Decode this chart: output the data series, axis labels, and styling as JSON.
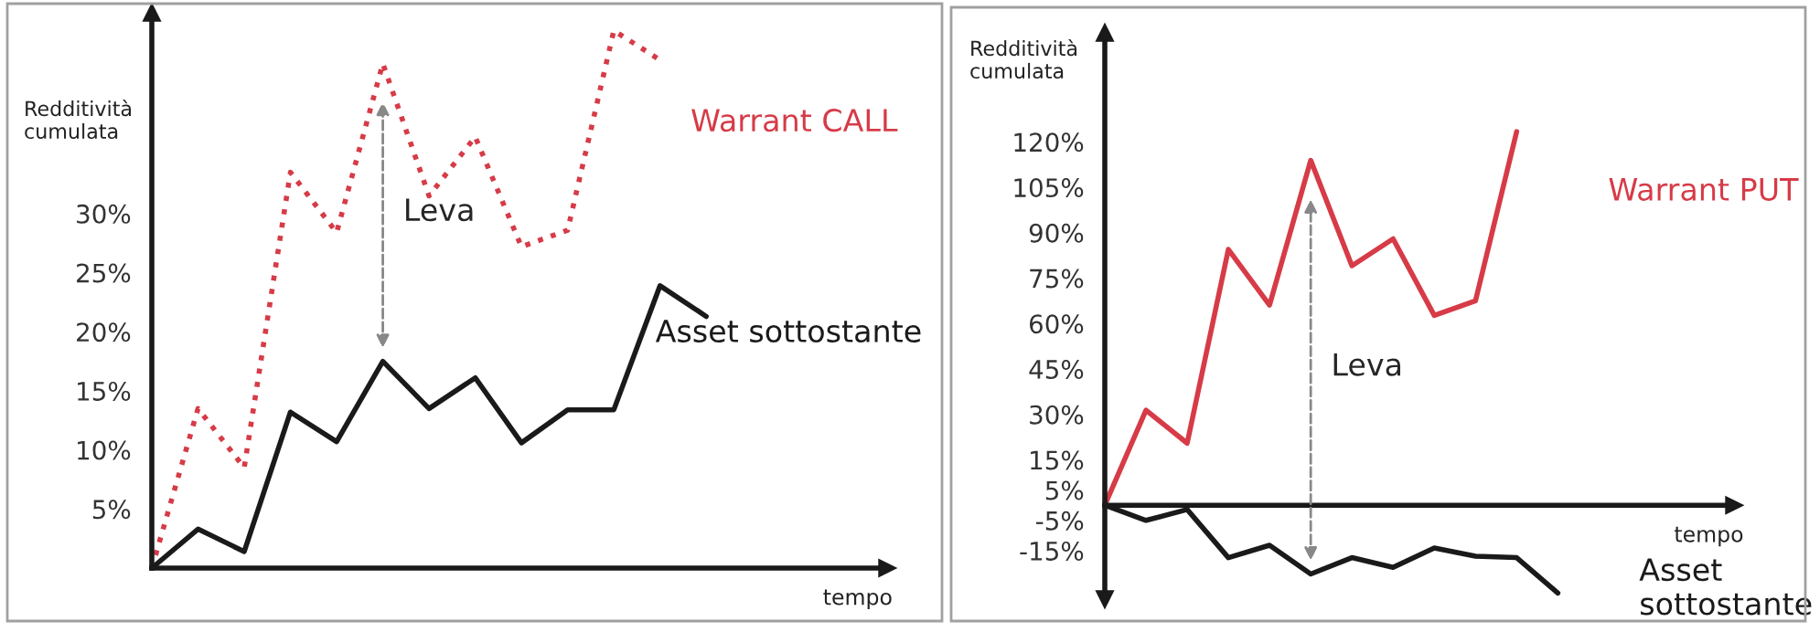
{
  "chart_data": [
    {
      "type": "line",
      "ylabel": "Redditività\ncumulata",
      "xlabel": "tempo",
      "categories": [
        null,
        null,
        null,
        null,
        null,
        null,
        null,
        null,
        null,
        null,
        null,
        null,
        null
      ],
      "ylim": [
        0,
        47
      ],
      "yticks": [
        {
          "value": 5,
          "label": "5%"
        },
        {
          "value": 10,
          "label": "10%"
        },
        {
          "value": 15,
          "label": "15%"
        },
        {
          "value": 20,
          "label": "20%"
        },
        {
          "value": 25,
          "label": "25%"
        },
        {
          "value": 30,
          "label": "30%"
        }
      ],
      "tick_labels": "y",
      "grid": false,
      "legend": false,
      "series": [
        {
          "name": "Warrant CALL",
          "color": "#d63b47",
          "line_style": "dotted",
          "values": [
            0,
            13.5,
            8.5,
            33.5,
            28.4,
            42.7,
            31.5,
            36.5,
            27.2,
            28.6,
            45.5,
            43,
            null
          ]
        },
        {
          "name": "Asset sottostante",
          "color": "#1a1a1a",
          "line_style": "solid",
          "values": [
            0,
            3.3,
            1.4,
            13.2,
            10.7,
            17.5,
            13.5,
            16.1,
            10.6,
            13.4,
            13.4,
            23.9,
            21.3
          ]
        }
      ],
      "annotations": [
        "Leva"
      ]
    },
    {
      "type": "line",
      "ylabel": "Redditività\ncumulata",
      "xlabel": "tempo",
      "categories": [
        null,
        null,
        null,
        null,
        null,
        null,
        null,
        null,
        null,
        null,
        null,
        null
      ],
      "ylim": [
        -31,
        156
      ],
      "yticks": [
        {
          "value": -15,
          "label": "-15%"
        },
        {
          "value": -5,
          "label": "-5%"
        },
        {
          "value": 5,
          "label": "5%"
        },
        {
          "value": 15,
          "label": "15%"
        },
        {
          "value": 30,
          "label": "30%"
        },
        {
          "value": 45,
          "label": "45%"
        },
        {
          "value": 60,
          "label": "60%"
        },
        {
          "value": 75,
          "label": "75%"
        },
        {
          "value": 90,
          "label": "90%"
        },
        {
          "value": 105,
          "label": "105%"
        },
        {
          "value": 120,
          "label": "120%"
        }
      ],
      "tick_labels": "y",
      "grid": false,
      "legend": false,
      "series": [
        {
          "name": "Warrant PUT",
          "color": "#d63b47",
          "line_style": "solid",
          "values": [
            0,
            31.4,
            20.5,
            84.5,
            66.1,
            113.9,
            79.1,
            88,
            62.7,
            67.5,
            123.4,
            null
          ]
        },
        {
          "name": "Asset\nsottostante",
          "color": "#1a1a1a",
          "line_style": "solid",
          "values": [
            0,
            -5,
            -1.4,
            -17.3,
            -13.2,
            -22.7,
            -17.3,
            -20.5,
            -14.1,
            -16.8,
            -17.3,
            -29
          ]
        }
      ],
      "annotations": [
        "Leva"
      ]
    }
  ]
}
